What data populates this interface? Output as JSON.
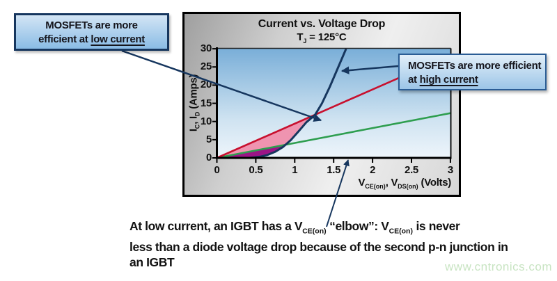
{
  "panel": {
    "title": "Current vs. Voltage Drop",
    "subtitle_t": "T",
    "subtitle_j": "J",
    "subtitle_rest": " = 125°C"
  },
  "axes": {
    "y_label": {
      "p1": "I",
      "s1": "C",
      "p2": ", I",
      "s2": "D",
      "p3": " (Amps)"
    },
    "x_label": {
      "p1": "V",
      "s1": "CE(on)",
      "p2": ", V",
      "s2": "DS(on)",
      "p3": " (Volts)"
    }
  },
  "callouts": {
    "low": {
      "line1": "MOSFETs are more",
      "line2_prefix": "efficient at ",
      "line2_underlined": "low current"
    },
    "high": {
      "line1": "MOSFETs are more efficient",
      "line2_prefix": "at ",
      "line2_underlined": "high current"
    }
  },
  "caption": {
    "p1": "At low current, an IGBT has a V",
    "s1": "CE(on)",
    "p2": " “elbow”: V",
    "s2": "CE(on)",
    "p3": " is never",
    "line2": "less than a diode voltage drop because of the second p-n junction in",
    "line3": "an IGBT"
  },
  "watermark": "www.cntronics.com",
  "colors": {
    "navy_line": "#16365e",
    "red_line": "#c8102e",
    "green_line": "#2e9e4f",
    "pink_fill": "#ef94b0",
    "purple_fill": "#9c1486",
    "plot_bg_top": "#79aed8",
    "plot_bg_bottom": "#eef5fb",
    "watermark_green": "#c8e4c2"
  },
  "chart_data": {
    "type": "line",
    "title": "Current vs. Voltage Drop",
    "subtitle": "TJ = 125°C",
    "xlabel": "VCE(on), VDS(on) (Volts)",
    "ylabel": "IC, ID (Amps)",
    "xlim": [
      0,
      3
    ],
    "ylim": [
      0,
      30
    ],
    "grid": false,
    "legend": "none (annotated with callout boxes)",
    "x_ticks": {
      "values": [
        0,
        0.5,
        1,
        1.5,
        2,
        2.5,
        3
      ],
      "labels": [
        "0",
        "0.5",
        "1",
        "1.5",
        "2",
        "2.5",
        "3"
      ]
    },
    "y_ticks": {
      "values": [
        0,
        5,
        10,
        15,
        20,
        25,
        30
      ],
      "labels": [
        "0",
        "5",
        "10",
        "15",
        "20",
        "25",
        "30"
      ]
    },
    "series": [
      {
        "name": "igbt-elbow-curve",
        "color": "#16365e",
        "points": [
          [
            0.42,
            0
          ],
          [
            0.55,
            0.3
          ],
          [
            0.65,
            0.8
          ],
          [
            0.75,
            1.7
          ],
          [
            0.85,
            3.0
          ],
          [
            0.95,
            4.9
          ],
          [
            1.05,
            7.3
          ],
          [
            1.15,
            9.8
          ],
          [
            1.26,
            11.8
          ],
          [
            1.35,
            15.0
          ],
          [
            1.45,
            19.5
          ],
          [
            1.55,
            24.5
          ],
          [
            1.66,
            30
          ]
        ]
      },
      {
        "name": "mosfet-line-steep",
        "color": "#c8102e",
        "points": [
          [
            0,
            0
          ],
          [
            2.34,
            22.0
          ]
        ]
      },
      {
        "name": "mosfet-line-shallow",
        "color": "#2e9e4f",
        "points": [
          [
            0,
            0
          ],
          [
            3,
            12.3
          ]
        ]
      }
    ],
    "shaded_regions": [
      {
        "name": "pink-region-mosfet-better-low-current",
        "color": "#ef94b0",
        "polygon": [
          [
            0,
            0
          ],
          [
            1.26,
            11.8
          ],
          [
            1.15,
            9.8
          ],
          [
            1.05,
            7.3
          ],
          [
            0.95,
            4.9
          ],
          [
            0.88,
            3.6
          ]
        ]
      },
      {
        "name": "purple-region",
        "color": "#9c1486",
        "polygon": [
          [
            0,
            0
          ],
          [
            0.88,
            3.6
          ],
          [
            0.85,
            3.0
          ],
          [
            0.75,
            1.7
          ],
          [
            0.65,
            0.8
          ],
          [
            0.55,
            0.3
          ],
          [
            0.42,
            0
          ]
        ]
      }
    ]
  }
}
